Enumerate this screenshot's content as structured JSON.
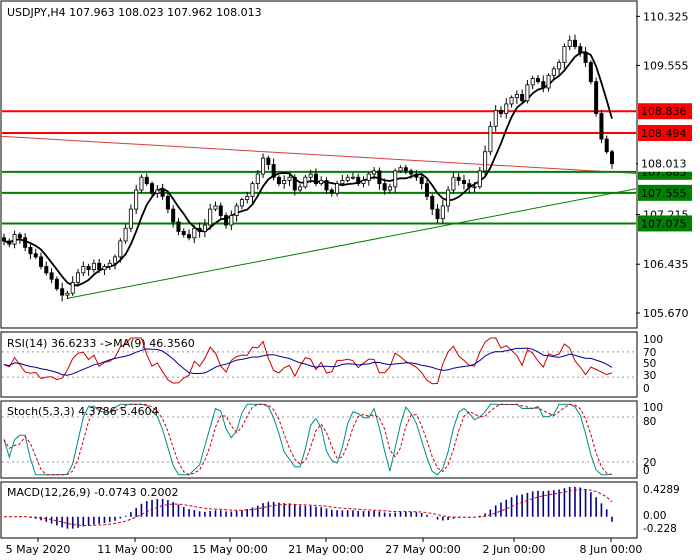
{
  "chart_data": {
    "type": "candlestick",
    "symbol_header": "USDJPY,H4  107.963 108.023 107.962 108.013",
    "price_axis": {
      "ylim": [
        105.45,
        110.55
      ],
      "ticks": [
        110.325,
        109.555,
        108.013,
        107.215,
        106.435,
        105.67
      ]
    },
    "x_ticks": [
      "5 May 2020",
      "11 May 00:00",
      "15 May 00:00",
      "21 May 00:00",
      "27 May 00:00",
      "2 Jun 00:00",
      "8 Jun 00:00"
    ],
    "candles_close_path": [
      106.8,
      106.75,
      106.9,
      106.85,
      106.7,
      106.6,
      106.55,
      106.4,
      106.3,
      106.2,
      106.05,
      105.95,
      105.98,
      106.15,
      106.3,
      106.4,
      106.35,
      106.45,
      106.35,
      106.4,
      106.45,
      106.55,
      106.8,
      107.0,
      107.3,
      107.6,
      107.8,
      107.7,
      107.55,
      107.6,
      107.5,
      107.3,
      107.1,
      106.95,
      106.9,
      106.85,
      107.0,
      106.95,
      107.05,
      107.3,
      107.35,
      107.2,
      107.05,
      107.2,
      107.35,
      107.45,
      107.5,
      107.7,
      107.85,
      108.1,
      108.0,
      107.8,
      107.7,
      107.75,
      107.8,
      107.6,
      107.65,
      107.8,
      107.85,
      107.7,
      107.75,
      107.6,
      107.55,
      107.7,
      107.75,
      107.8,
      107.8,
      107.7,
      107.75,
      107.85,
      107.9,
      107.7,
      107.6,
      107.65,
      107.9,
      107.95,
      107.9,
      107.85,
      107.8,
      107.7,
      107.5,
      107.3,
      107.15,
      107.35,
      107.6,
      107.8,
      107.75,
      107.7,
      107.65,
      107.65,
      107.9,
      108.2,
      108.6,
      108.85,
      108.8,
      108.95,
      109.05,
      109.1,
      109.0,
      109.25,
      109.35,
      109.3,
      109.2,
      109.4,
      109.5,
      109.6,
      109.85,
      109.95,
      109.85,
      109.75,
      109.6,
      109.3,
      108.8,
      108.4,
      108.2,
      108.013
    ],
    "levels": [
      {
        "value": 108.836,
        "label": "108.836",
        "color": "#ff0000"
      },
      {
        "value": 108.494,
        "label": "108.494",
        "color": "#ff0000"
      },
      {
        "value": 107.885,
        "label": "107.885",
        "color": "#008000"
      },
      {
        "value": 107.555,
        "label": "107.555",
        "color": "#008000"
      },
      {
        "value": 107.075,
        "label": "107.075",
        "color": "#008000"
      }
    ],
    "current_price": {
      "value": 108.013,
      "label": "108.013"
    },
    "trendlines": [
      {
        "color": "#d04040",
        "from": {
          "i": -2,
          "v": 108.45
        },
        "to": {
          "i": 120,
          "v": 107.86
        }
      },
      {
        "color": "#008000",
        "from": {
          "i": 12,
          "v": 105.9
        },
        "to": {
          "i": 120,
          "v": 107.62
        }
      }
    ],
    "indicators": {
      "rsi": {
        "label": "RSI(14) 36.6233  ->MA(9) 46.3560",
        "ylim": [
          0,
          100
        ],
        "ticks": [
          "70",
          "50",
          "30",
          "0"
        ],
        "levels": [
          30,
          70
        ],
        "top_label": "100"
      },
      "stoch": {
        "label": "Stoch(5,3,3) 4.3786 5.4604",
        "ylim": [
          0,
          100
        ],
        "ticks": [
          "100",
          "80",
          "20",
          "0"
        ],
        "levels": [
          20,
          80
        ]
      },
      "macd": {
        "label": "MACD(12,26,9) -0.0743 0.2002",
        "ylim": [
          -0.3,
          0.5
        ],
        "ticks": [
          "0.4289",
          "0.00",
          "-0.228"
        ]
      }
    }
  },
  "colors": {
    "up": "#ffffff",
    "down": "#000000",
    "ma": "#000000",
    "rsi": "#cc0000",
    "rsi_ma": "#00008b",
    "stoch_main": "#008b8b",
    "stoch_signal": "#cc0000",
    "macd_hist": "#00008b",
    "macd_signal": "#cc0000"
  }
}
